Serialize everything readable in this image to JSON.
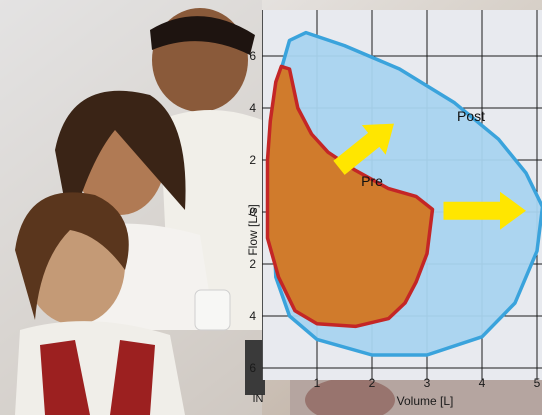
{
  "chart_data": {
    "type": "line",
    "xlabel": "Volume [L]",
    "ylabel": "Flow [L/s]",
    "xlim": [
      0,
      5
    ],
    "ylim": [
      -6,
      6.5
    ],
    "x_ticks": [
      1,
      2,
      3,
      4,
      5
    ],
    "y_ticks": [
      {
        "v": 6,
        "label": "6"
      },
      {
        "v": 4,
        "label": "4"
      },
      {
        "v": 2,
        "label": "2"
      },
      {
        "v": 0,
        "label": "0"
      },
      {
        "v": -2,
        "label": "2"
      },
      {
        "v": -4,
        "label": "4"
      },
      {
        "v": -6,
        "label": "6"
      }
    ],
    "grid": true,
    "series": [
      {
        "name": "Post",
        "line_color": "#3aa3dc",
        "fill_color": "#a9d4ef",
        "points": [
          [
            0.2,
            0
          ],
          [
            0.25,
            3
          ],
          [
            0.35,
            5.5
          ],
          [
            0.5,
            6.6
          ],
          [
            0.8,
            6.9
          ],
          [
            1.5,
            6.4
          ],
          [
            2.5,
            5.5
          ],
          [
            3.5,
            4.2
          ],
          [
            4.3,
            2.8
          ],
          [
            4.8,
            1.5
          ],
          [
            5.1,
            0.2
          ],
          [
            5.0,
            -1.5
          ],
          [
            4.6,
            -3.5
          ],
          [
            4.0,
            -4.8
          ],
          [
            3.0,
            -5.5
          ],
          [
            2.0,
            -5.5
          ],
          [
            1.0,
            -4.9
          ],
          [
            0.5,
            -4.0
          ],
          [
            0.25,
            -2.5
          ],
          [
            0.2,
            0
          ]
        ]
      },
      {
        "name": "Pre",
        "line_color": "#c42626",
        "fill_color": "#d07b2c",
        "points": [
          [
            0.1,
            0.1
          ],
          [
            0.1,
            2.0
          ],
          [
            0.15,
            3.5
          ],
          [
            0.25,
            5.0
          ],
          [
            0.35,
            5.6
          ],
          [
            0.5,
            5.5
          ],
          [
            0.65,
            4.0
          ],
          [
            0.9,
            3.0
          ],
          [
            1.2,
            2.3
          ],
          [
            1.7,
            1.6
          ],
          [
            2.3,
            0.9
          ],
          [
            2.8,
            0.6
          ],
          [
            3.1,
            0.1
          ],
          [
            3.0,
            -1.6
          ],
          [
            2.8,
            -2.7
          ],
          [
            2.6,
            -3.5
          ],
          [
            2.3,
            -4.1
          ],
          [
            1.7,
            -4.4
          ],
          [
            1.0,
            -4.3
          ],
          [
            0.6,
            -3.8
          ],
          [
            0.3,
            -2.5
          ],
          [
            0.1,
            -1.0
          ],
          [
            0.1,
            0.1
          ]
        ]
      }
    ],
    "annotations": [
      {
        "text": "Post",
        "x": 3.8,
        "y": 3.5
      },
      {
        "text": "Pre",
        "x": 2.0,
        "y": 1.0
      }
    ],
    "arrows": [
      {
        "color": "#ffe600",
        "from": [
          1.4,
          1.7
        ],
        "to": [
          2.4,
          3.4
        ]
      },
      {
        "color": "#ffe600",
        "from": [
          3.3,
          0.05
        ],
        "to": [
          4.8,
          0.05
        ]
      }
    ],
    "truncated_label": "IN"
  },
  "colors": {
    "gridline": "#1c1c1c",
    "plot_background": "#e8eaef",
    "photo_background": "#c4c9d2"
  }
}
